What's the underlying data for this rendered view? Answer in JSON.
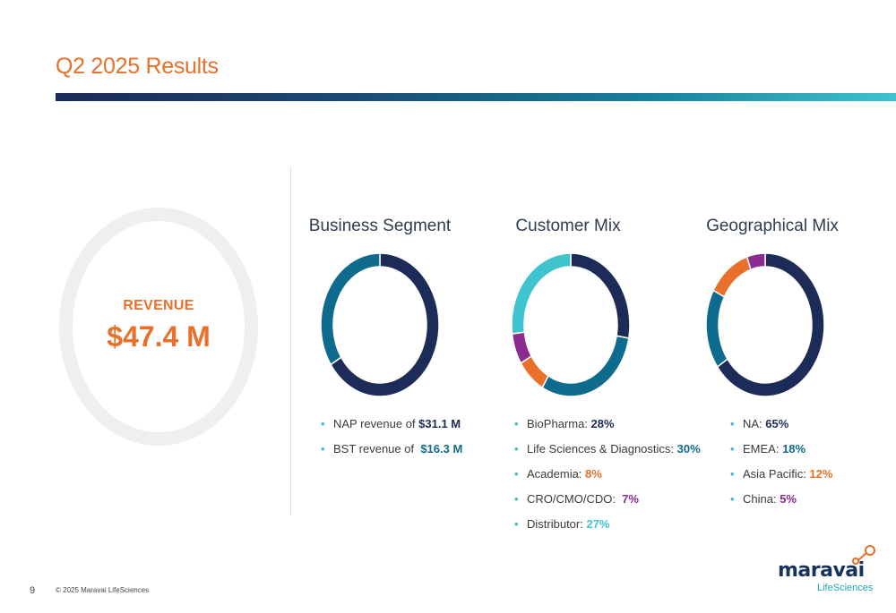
{
  "slide": {
    "title": "Q2 2025 Results",
    "page_number": "9",
    "footer": "© 2025 Maravai LifeSciences"
  },
  "revenue": {
    "label": "REVENUE",
    "value": "$47.4 M"
  },
  "brand": {
    "name": "maravai",
    "sub": "LifeSciences",
    "accent": "#e8702a",
    "navy": "#1c2b57"
  },
  "chart_data": [
    {
      "type": "pie",
      "title": "Business Segment",
      "categories": [
        "NAP",
        "BST"
      ],
      "values": [
        31.1,
        16.3
      ],
      "colors": [
        "#1c2b57",
        "#0f6b8e"
      ],
      "legend": [
        {
          "text": "NAP revenue of ",
          "value": "$31.1 M",
          "color": "#1c2b57"
        },
        {
          "text": "BST revenue of  ",
          "value": "$16.3 M",
          "color": "#0f6b8e"
        }
      ]
    },
    {
      "type": "pie",
      "title": "Customer Mix",
      "categories": [
        "BioPharma",
        "Life Sciences & Diagnostics",
        "Academia",
        "CRO/CMO/CDO",
        "Distributor"
      ],
      "values": [
        28,
        30,
        8,
        7,
        27
      ],
      "colors": [
        "#1c2b57",
        "#0f6b8e",
        "#e8702a",
        "#8b2a8f",
        "#3ec3cf"
      ],
      "legend": [
        {
          "text": "BioPharma: ",
          "value": "28%",
          "color": "#1c2b57"
        },
        {
          "text": "Life Sciences & Diagnostics: ",
          "value": "30%",
          "color": "#0f6b8e"
        },
        {
          "text": "Academia: ",
          "value": "8%",
          "color": "#e8702a"
        },
        {
          "text": "CRO/CMO/CDO:  ",
          "value": "7%",
          "color": "#8b2a8f"
        },
        {
          "text": "Distributor: ",
          "value": "27%",
          "color": "#3ec3cf"
        }
      ]
    },
    {
      "type": "pie",
      "title": "Geographical Mix",
      "categories": [
        "NA",
        "EMEA",
        "Asia Pacific",
        "China"
      ],
      "values": [
        65,
        18,
        12,
        5
      ],
      "colors": [
        "#1c2b57",
        "#0f6b8e",
        "#e8702a",
        "#8b2a8f"
      ],
      "legend": [
        {
          "text": "NA: ",
          "value": "65%",
          "color": "#1c2b57"
        },
        {
          "text": "EMEA: ",
          "value": "18%",
          "color": "#0f6b8e"
        },
        {
          "text": "Asia Pacific: ",
          "value": "12%",
          "color": "#e8702a"
        },
        {
          "text": "China: ",
          "value": "5%",
          "color": "#8b2a8f"
        }
      ]
    }
  ]
}
